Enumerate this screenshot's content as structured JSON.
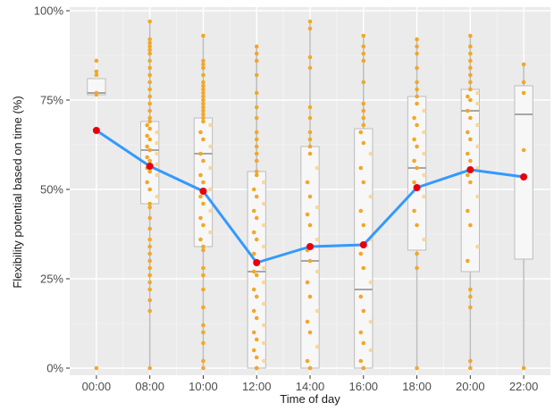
{
  "chart_data": {
    "type": "box",
    "xlabel": "Time of day",
    "ylabel": "Flexibility potential based on time (%)",
    "categories": [
      "00:00",
      "08:00",
      "10:00",
      "12:00",
      "14:00",
      "16:00",
      "18:00",
      "20:00",
      "22:00"
    ],
    "y_ticks": [
      0,
      25,
      50,
      75,
      100
    ],
    "y_tick_labels": [
      "0%",
      "25%",
      "50%",
      "75%",
      "100%"
    ],
    "ylim": [
      -2,
      101
    ],
    "grid": true,
    "legend": "none",
    "boxes": [
      {
        "category": "00:00",
        "whisker_low": 76.5,
        "q1": 76.5,
        "median": 77,
        "q3": 81,
        "whisker_high": 81
      },
      {
        "category": "08:00",
        "whisker_low": 0,
        "q1": 46,
        "median": 61,
        "q3": 69,
        "whisker_high": 97
      },
      {
        "category": "10:00",
        "whisker_low": 0,
        "q1": 34,
        "median": 60,
        "q3": 70,
        "whisker_high": 93
      },
      {
        "category": "12:00",
        "whisker_low": 0,
        "q1": 0,
        "median": 27,
        "q3": 55,
        "whisker_high": 90
      },
      {
        "category": "14:00",
        "whisker_low": 0,
        "q1": 0,
        "median": 30,
        "q3": 62,
        "whisker_high": 97
      },
      {
        "category": "16:00",
        "whisker_low": 0,
        "q1": 0,
        "median": 22,
        "q3": 67,
        "whisker_high": 93
      },
      {
        "category": "18:00",
        "whisker_low": 0,
        "q1": 33,
        "median": 56,
        "q3": 76,
        "whisker_high": 92
      },
      {
        "category": "20:00",
        "whisker_low": 0,
        "q1": 27,
        "median": 72,
        "q3": 78,
        "whisker_high": 93
      },
      {
        "category": "22:00",
        "whisker_low": 0,
        "q1": 30.5,
        "median": 71,
        "q3": 79,
        "whisker_high": 85
      }
    ],
    "mean_line": {
      "color": "#3399ff",
      "marker_color": "#e8000b",
      "values": [
        66.5,
        56.5,
        49.5,
        29.5,
        34,
        34.5,
        50.5,
        55.5,
        53.5
      ]
    },
    "points": {
      "color": "#f0a82a",
      "light_color": "#fad79a",
      "by_category": [
        [
          0,
          76.5,
          77,
          82,
          83,
          86
        ],
        [
          0,
          16,
          19,
          22,
          24,
          26,
          28,
          30,
          32,
          34,
          36,
          39,
          42,
          45,
          46,
          48,
          50,
          52,
          54,
          55,
          56,
          57,
          58,
          59,
          60,
          61,
          62,
          63,
          64,
          65,
          66,
          67,
          68,
          69,
          70,
          72,
          74,
          76,
          78,
          80,
          82,
          84,
          86,
          88,
          89,
          90,
          91,
          92,
          97
        ],
        [
          0,
          2,
          7,
          10,
          12,
          17,
          22,
          26,
          28,
          33,
          34,
          36,
          38,
          40,
          42,
          44,
          46,
          48,
          50,
          52,
          54,
          56,
          58,
          60,
          62,
          64,
          66,
          68,
          69,
          70,
          71,
          72,
          73,
          74,
          75,
          76,
          77,
          78,
          79,
          80,
          82,
          84,
          85,
          86,
          93
        ],
        [
          0,
          0,
          0,
          2,
          3,
          5,
          7,
          8,
          10,
          12,
          14,
          16,
          18,
          20,
          22,
          24,
          26,
          27,
          28,
          30,
          32,
          34,
          36,
          38,
          40,
          42,
          44,
          46,
          48,
          50,
          52,
          54,
          55,
          58,
          60,
          62,
          64,
          66,
          70,
          73,
          77,
          82,
          86,
          88,
          90
        ],
        [
          0,
          0,
          2,
          6,
          10,
          13,
          16,
          20,
          24,
          27,
          30,
          33,
          36,
          40,
          43,
          45,
          48,
          52,
          56,
          60,
          62,
          64,
          66,
          70,
          73,
          84,
          87,
          95,
          97
        ],
        [
          0,
          0,
          2,
          5,
          7,
          10,
          13,
          16,
          20,
          24,
          28,
          32,
          36,
          40,
          44,
          48,
          52,
          56,
          60,
          63,
          66,
          68,
          70,
          72,
          74,
          80,
          86,
          88,
          90,
          93
        ],
        [
          0,
          28,
          32,
          36,
          40,
          44,
          48,
          50,
          52,
          54,
          56,
          58,
          60,
          62,
          64,
          66,
          68,
          70,
          72,
          74,
          76,
          78,
          80,
          84,
          88,
          90,
          92
        ],
        [
          0,
          2,
          17,
          20,
          22,
          30,
          34,
          40,
          44,
          48,
          52,
          54,
          56,
          58,
          60,
          62,
          64,
          66,
          68,
          70,
          72,
          74,
          75,
          76,
          77,
          78,
          80,
          82,
          84,
          86,
          88,
          90,
          93
        ],
        [
          0,
          53.5,
          61,
          77,
          80,
          85
        ]
      ]
    }
  }
}
